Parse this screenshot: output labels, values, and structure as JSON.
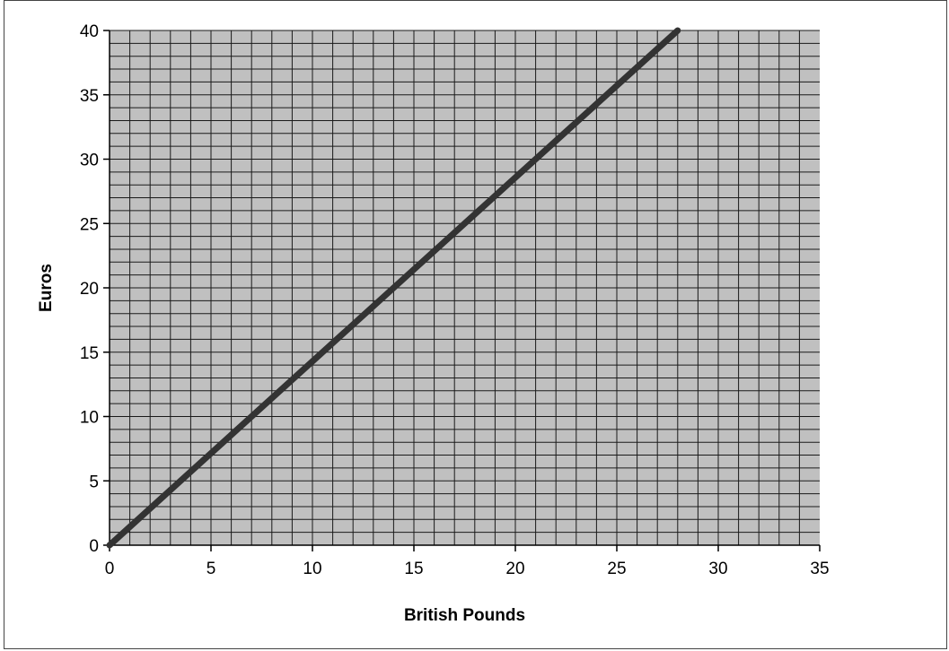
{
  "chart_data": {
    "type": "line",
    "title": "",
    "xlabel": "British Pounds",
    "ylabel": "Euros",
    "xlim": [
      0,
      35
    ],
    "ylim": [
      0,
      40
    ],
    "x_major_ticks": [
      0,
      5,
      10,
      15,
      20,
      25,
      30,
      35
    ],
    "y_major_ticks": [
      0,
      5,
      10,
      15,
      20,
      25,
      30,
      35,
      40
    ],
    "x_minor_step": 1,
    "y_minor_step": 1,
    "grid": true,
    "legend": "none",
    "plot_background": "#c0c0c0",
    "line_color": "#333333",
    "series": [
      {
        "x": [
          0,
          28
        ],
        "y": [
          0,
          40
        ]
      }
    ]
  }
}
